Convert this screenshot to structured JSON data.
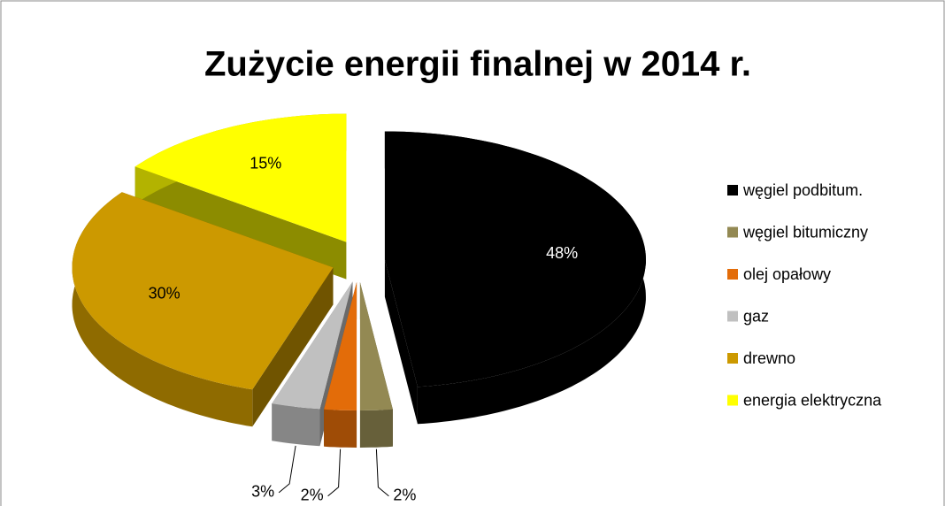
{
  "chart_data": {
    "type": "pie",
    "title": "Zużycie energii finalnej w 2014 r.",
    "categories": [
      "węgiel podbitum.",
      "węgiel bitumiczny",
      "olej opałowy",
      "gaz",
      "drewno",
      "energia elektryczna"
    ],
    "values": [
      48,
      2,
      2,
      3,
      30,
      15
    ],
    "value_labels": [
      "48%",
      "2%",
      "2%",
      "3%",
      "30%",
      "15%"
    ],
    "colors": [
      "#000000",
      "#938953",
      "#e36c09",
      "#c0c0c0",
      "#cc9900",
      "#ffff00"
    ],
    "legend": "right"
  }
}
